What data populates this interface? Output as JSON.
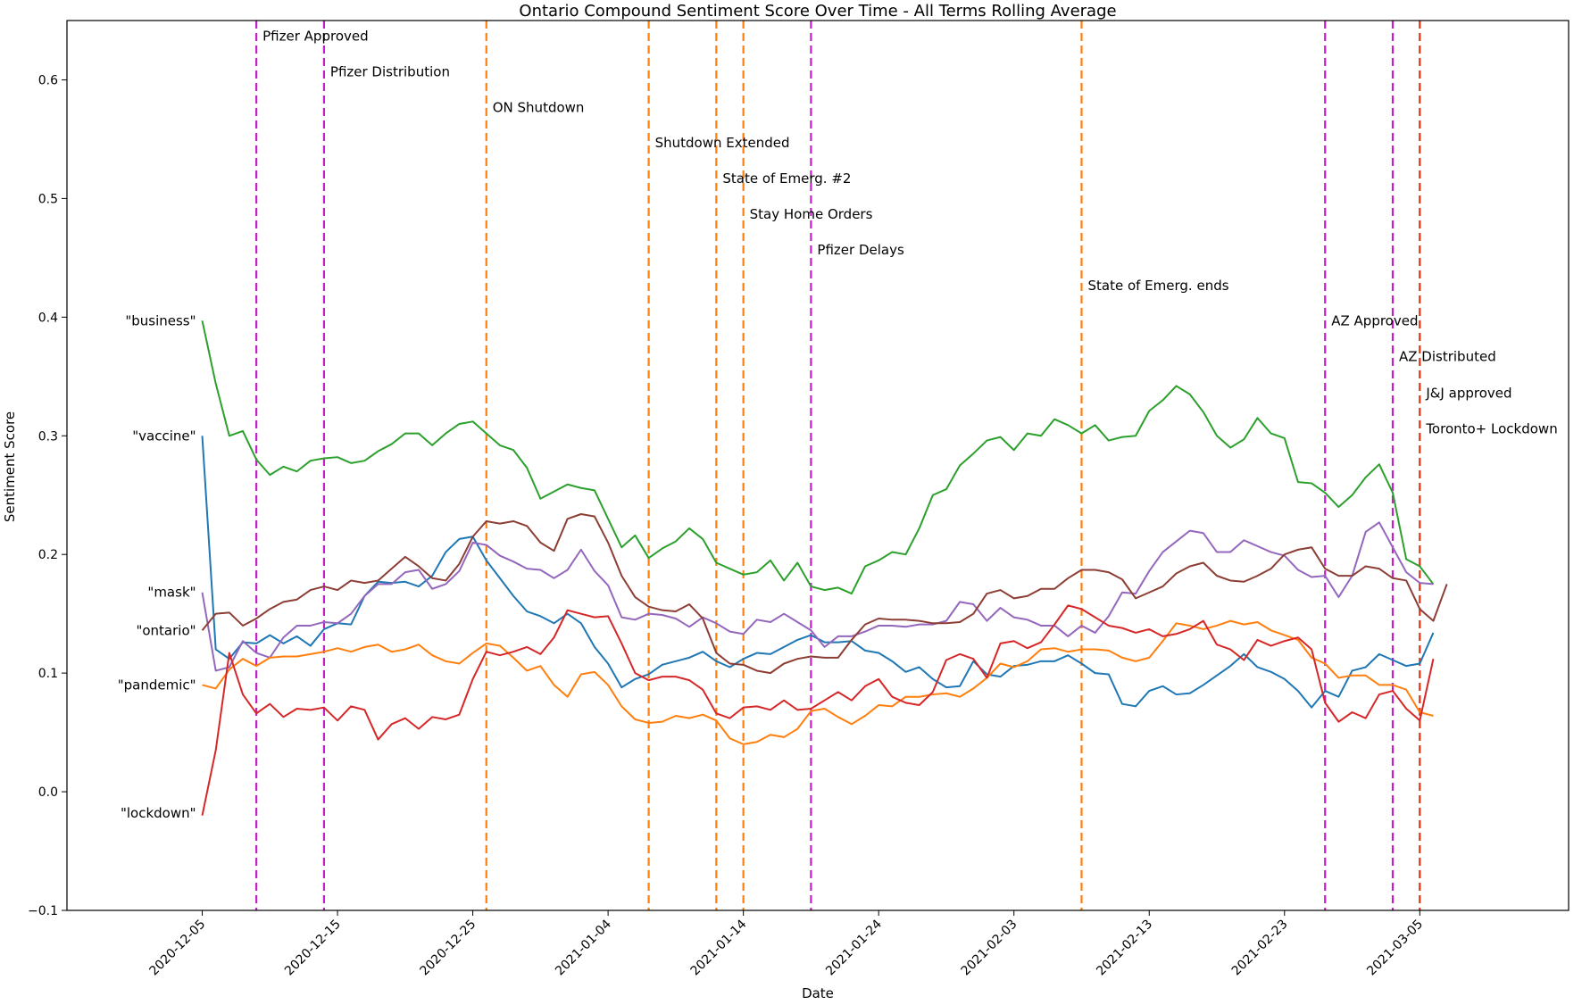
{
  "chart_data": {
    "type": "line",
    "title": "Ontario Compound Sentiment Score Over Time - All Terms Rolling Average",
    "xlabel": "Date",
    "ylabel": "Sentiment Score",
    "xlim": [
      "2020-11-25",
      "2021-03-16"
    ],
    "ylim": [
      -0.1,
      0.65
    ],
    "grid": false,
    "x_ticks": [
      "2020-12-05",
      "2020-12-15",
      "2020-12-25",
      "2021-01-04",
      "2021-01-14",
      "2021-01-24",
      "2021-02-03",
      "2021-02-13",
      "2021-02-23",
      "2021-03-05"
    ],
    "y_ticks": [
      -0.1,
      0.0,
      0.1,
      0.2,
      0.3,
      0.4,
      0.5,
      0.6
    ],
    "y_tick_labels": [
      "−0.1",
      "0.0",
      "0.1",
      "0.2",
      "0.3",
      "0.4",
      "0.5",
      "0.6"
    ],
    "events": [
      {
        "date": "2020-12-09",
        "label": "Pfizer Approved",
        "color": "#c41ec9",
        "label_y": 0.633
      },
      {
        "date": "2020-12-14",
        "label": "Pfizer Distribution",
        "color": "#c41ec9",
        "label_y": 0.603
      },
      {
        "date": "2020-12-26",
        "label": "ON Shutdown",
        "color": "#ff7f0e",
        "label_y": 0.573
      },
      {
        "date": "2021-01-07",
        "label": "Shutdown Extended",
        "color": "#ff7f0e",
        "label_y": 0.543
      },
      {
        "date": "2021-01-12",
        "label": "State of Emerg. #2",
        "color": "#ff7f0e",
        "label_y": 0.513
      },
      {
        "date": "2021-01-14",
        "label": "Stay Home Orders",
        "color": "#ff7f0e",
        "label_y": 0.483
      },
      {
        "date": "2021-01-19",
        "label": "Pfizer Delays",
        "color": "#c41ec9",
        "label_y": 0.453
      },
      {
        "date": "2021-02-08",
        "label": "State of Emerg. ends",
        "color": "#ff7f0e",
        "label_y": 0.423
      },
      {
        "date": "2021-02-26",
        "label": "AZ Approved",
        "color": "#c41ec9",
        "label_y": 0.393
      },
      {
        "date": "2021-03-03",
        "label": "AZ Distributed",
        "color": "#c41ec9",
        "label_y": 0.363
      },
      {
        "date": "2021-03-05",
        "label": "J&J approved",
        "color": "#c41ec9",
        "label_y": 0.332
      },
      {
        "date": "2021-03-05",
        "label": "Toronto+ Lockdown",
        "color": "#e8401c",
        "label_y": 0.302
      }
    ],
    "series": [
      {
        "name": "\"business\"",
        "color": "#2ca02c",
        "label_y": 0.397,
        "x_start": "2020-12-05",
        "values": [
          0.397,
          0.344,
          0.3,
          0.304,
          0.28,
          0.267,
          0.274,
          0.27,
          0.279,
          0.281,
          0.282,
          0.277,
          0.279,
          0.287,
          0.293,
          0.302,
          0.302,
          0.292,
          0.302,
          0.31,
          0.312,
          0.302,
          0.292,
          0.288,
          0.273,
          0.247,
          0.253,
          0.259,
          0.256,
          0.254,
          0.23,
          0.206,
          0.216,
          0.197,
          0.205,
          0.211,
          0.222,
          0.213,
          0.193,
          0.188,
          0.183,
          0.185,
          0.195,
          0.178,
          0.193,
          0.173,
          0.17,
          0.172,
          0.167,
          0.19,
          0.195,
          0.202,
          0.2,
          0.222,
          0.25,
          0.255,
          0.275,
          0.285,
          0.296,
          0.299,
          0.288,
          0.302,
          0.3,
          0.314,
          0.309,
          0.302,
          0.309,
          0.296,
          0.299,
          0.3,
          0.321,
          0.33,
          0.342,
          0.335,
          0.32,
          0.3,
          0.29,
          0.297,
          0.315,
          0.302,
          0.298,
          0.261,
          0.26,
          0.252,
          0.24,
          0.25,
          0.265,
          0.276,
          0.252,
          0.196,
          0.19,
          0.175
        ]
      },
      {
        "name": "\"vaccine\"",
        "color": "#1f77b4",
        "label_y": 0.3,
        "x_start": "2020-12-05",
        "values": [
          0.3,
          0.12,
          0.112,
          0.126,
          0.125,
          0.132,
          0.125,
          0.131,
          0.123,
          0.137,
          0.142,
          0.141,
          0.165,
          0.177,
          0.176,
          0.177,
          0.173,
          0.182,
          0.202,
          0.213,
          0.215,
          0.195,
          0.18,
          0.165,
          0.152,
          0.148,
          0.142,
          0.15,
          0.142,
          0.122,
          0.108,
          0.088,
          0.095,
          0.099,
          0.107,
          0.11,
          0.113,
          0.118,
          0.11,
          0.105,
          0.112,
          0.117,
          0.116,
          0.122,
          0.128,
          0.132,
          0.126,
          0.126,
          0.127,
          0.119,
          0.117,
          0.11,
          0.101,
          0.105,
          0.095,
          0.088,
          0.089,
          0.11,
          0.099,
          0.097,
          0.106,
          0.107,
          0.11,
          0.11,
          0.115,
          0.108,
          0.1,
          0.099,
          0.074,
          0.072,
          0.085,
          0.089,
          0.082,
          0.083,
          0.09,
          0.098,
          0.106,
          0.116,
          0.105,
          0.101,
          0.095,
          0.085,
          0.071,
          0.085,
          0.08,
          0.102,
          0.105,
          0.116,
          0.111,
          0.106,
          0.108,
          0.134
        ]
      },
      {
        "name": "\"mask\"",
        "color": "#9467bd",
        "label_y": 0.168,
        "x_start": "2020-12-05",
        "values": [
          0.168,
          0.102,
          0.105,
          0.127,
          0.117,
          0.113,
          0.13,
          0.14,
          0.14,
          0.143,
          0.142,
          0.15,
          0.165,
          0.175,
          0.175,
          0.185,
          0.187,
          0.171,
          0.175,
          0.186,
          0.21,
          0.208,
          0.199,
          0.194,
          0.188,
          0.187,
          0.18,
          0.187,
          0.204,
          0.186,
          0.174,
          0.147,
          0.145,
          0.15,
          0.149,
          0.146,
          0.139,
          0.147,
          0.142,
          0.135,
          0.133,
          0.145,
          0.143,
          0.15,
          0.143,
          0.136,
          0.122,
          0.131,
          0.131,
          0.135,
          0.14,
          0.14,
          0.139,
          0.141,
          0.141,
          0.144,
          0.16,
          0.158,
          0.144,
          0.155,
          0.147,
          0.145,
          0.14,
          0.14,
          0.131,
          0.14,
          0.134,
          0.148,
          0.168,
          0.167,
          0.186,
          0.202,
          0.211,
          0.22,
          0.218,
          0.202,
          0.202,
          0.212,
          0.207,
          0.202,
          0.199,
          0.187,
          0.181,
          0.182,
          0.164,
          0.182,
          0.219,
          0.227,
          0.206,
          0.185,
          0.176,
          0.175
        ]
      },
      {
        "name": "\"ontario\"",
        "color": "#8c3e35",
        "label_y": 0.136,
        "x_start": "2020-12-05",
        "values": [
          0.136,
          0.15,
          0.151,
          0.14,
          0.146,
          0.154,
          0.16,
          0.162,
          0.17,
          0.173,
          0.17,
          0.178,
          0.176,
          0.178,
          0.188,
          0.198,
          0.19,
          0.18,
          0.178,
          0.192,
          0.215,
          0.228,
          0.226,
          0.228,
          0.224,
          0.21,
          0.203,
          0.23,
          0.234,
          0.232,
          0.21,
          0.182,
          0.164,
          0.156,
          0.153,
          0.152,
          0.158,
          0.146,
          0.117,
          0.108,
          0.107,
          0.102,
          0.1,
          0.108,
          0.112,
          0.114,
          0.113,
          0.113,
          0.128,
          0.141,
          0.146,
          0.145,
          0.145,
          0.144,
          0.142,
          0.142,
          0.143,
          0.15,
          0.167,
          0.17,
          0.163,
          0.165,
          0.171,
          0.171,
          0.18,
          0.187,
          0.187,
          0.185,
          0.179,
          0.163,
          0.168,
          0.173,
          0.184,
          0.19,
          0.193,
          0.182,
          0.178,
          0.177,
          0.182,
          0.188,
          0.2,
          0.204,
          0.206,
          0.188,
          0.182,
          0.182,
          0.19,
          0.188,
          0.18,
          0.178,
          0.154,
          0.144,
          0.175
        ]
      },
      {
        "name": "\"pandemic\"",
        "color": "#ff7f0e",
        "label_y": 0.09,
        "x_start": "2020-12-05",
        "values": [
          0.09,
          0.087,
          0.103,
          0.112,
          0.106,
          0.113,
          0.114,
          0.114,
          0.116,
          0.118,
          0.121,
          0.118,
          0.122,
          0.124,
          0.118,
          0.12,
          0.124,
          0.115,
          0.11,
          0.108,
          0.117,
          0.125,
          0.123,
          0.113,
          0.102,
          0.106,
          0.09,
          0.08,
          0.099,
          0.101,
          0.09,
          0.072,
          0.061,
          0.058,
          0.059,
          0.064,
          0.062,
          0.065,
          0.06,
          0.045,
          0.04,
          0.042,
          0.048,
          0.046,
          0.053,
          0.068,
          0.07,
          0.063,
          0.057,
          0.064,
          0.073,
          0.072,
          0.08,
          0.08,
          0.082,
          0.083,
          0.08,
          0.087,
          0.096,
          0.108,
          0.105,
          0.11,
          0.12,
          0.121,
          0.118,
          0.12,
          0.12,
          0.119,
          0.113,
          0.11,
          0.113,
          0.127,
          0.142,
          0.14,
          0.137,
          0.14,
          0.144,
          0.141,
          0.143,
          0.136,
          0.132,
          0.128,
          0.113,
          0.108,
          0.096,
          0.098,
          0.098,
          0.09,
          0.09,
          0.086,
          0.067,
          0.064
        ]
      },
      {
        "name": "\"lockdown\"",
        "color": "#d62728",
        "label_y": -0.018,
        "x_start": "2020-12-05",
        "values": [
          -0.02,
          0.035,
          0.117,
          0.082,
          0.066,
          0.074,
          0.063,
          0.07,
          0.069,
          0.071,
          0.06,
          0.072,
          0.069,
          0.044,
          0.057,
          0.062,
          0.053,
          0.063,
          0.061,
          0.065,
          0.095,
          0.118,
          0.115,
          0.118,
          0.122,
          0.116,
          0.13,
          0.153,
          0.15,
          0.147,
          0.148,
          0.125,
          0.1,
          0.094,
          0.097,
          0.097,
          0.094,
          0.086,
          0.066,
          0.062,
          0.071,
          0.072,
          0.069,
          0.077,
          0.069,
          0.07,
          0.077,
          0.084,
          0.077,
          0.089,
          0.095,
          0.08,
          0.075,
          0.073,
          0.084,
          0.111,
          0.116,
          0.112,
          0.096,
          0.125,
          0.127,
          0.121,
          0.126,
          0.141,
          0.157,
          0.154,
          0.147,
          0.14,
          0.138,
          0.134,
          0.137,
          0.131,
          0.133,
          0.137,
          0.144,
          0.124,
          0.12,
          0.111,
          0.128,
          0.123,
          0.127,
          0.13,
          0.12,
          0.075,
          0.059,
          0.067,
          0.062,
          0.082,
          0.085,
          0.07,
          0.06,
          0.112
        ]
      }
    ]
  }
}
